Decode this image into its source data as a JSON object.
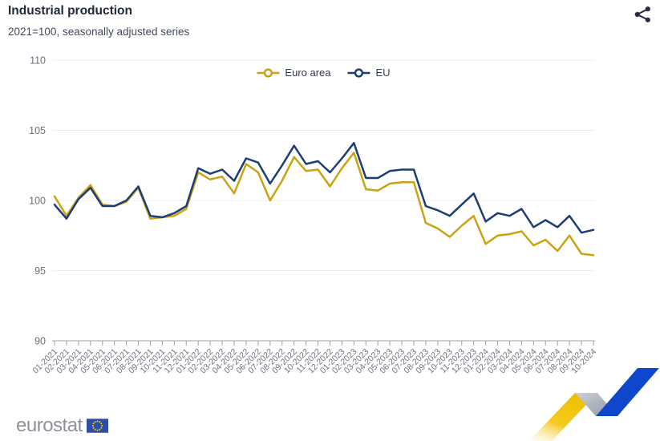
{
  "header": {
    "title": "Industrial production",
    "subtitle": "2021=100, seasonally adjusted series"
  },
  "toolbar": {
    "share_icon_color": "#252C3A"
  },
  "chart_data": {
    "type": "line",
    "title": "Industrial production",
    "subtitle": "2021=100, seasonally adjusted series",
    "xlabel": "",
    "ylabel": "",
    "ylim": [
      90,
      110
    ],
    "yticks": [
      90,
      95,
      100,
      105,
      110
    ],
    "grid": "horizontal",
    "legend_position": "top-center",
    "x": [
      "01-2021",
      "02-2021",
      "03-2021",
      "04-2021",
      "05-2021",
      "06-2021",
      "07-2021",
      "08-2021",
      "09-2021",
      "10-2021",
      "11-2021",
      "12-2021",
      "01-2022",
      "02-2022",
      "03-2022",
      "04-2022",
      "05-2022",
      "06-2022",
      "07-2022",
      "08-2022",
      "09-2022",
      "10-2022",
      "11-2022",
      "12-2022",
      "01-2023",
      "02-2023",
      "03-2023",
      "04-2023",
      "05-2023",
      "06-2023",
      "07-2023",
      "08-2023",
      "09-2023",
      "10-2023",
      "11-2023",
      "12-2023",
      "01-2024",
      "02-2024",
      "03-2024",
      "04-2024",
      "05-2024",
      "06-2024",
      "07-2024",
      "08-2024",
      "09-2024",
      "10-2024"
    ],
    "series": [
      {
        "name": "Euro area",
        "color": "#CBA312",
        "values": [
          100.3,
          98.9,
          100.2,
          101.1,
          99.7,
          99.6,
          99.9,
          100.9,
          98.7,
          98.8,
          98.9,
          99.4,
          102.0,
          101.5,
          101.7,
          100.5,
          102.6,
          102.0,
          100.0,
          101.4,
          103.1,
          102.1,
          102.2,
          101.0,
          102.3,
          103.4,
          100.8,
          100.7,
          101.2,
          101.3,
          101.3,
          98.4,
          98.0,
          97.4,
          98.2,
          98.9,
          96.9,
          97.5,
          97.6,
          97.8,
          96.8,
          97.2,
          96.4,
          97.5,
          96.2,
          96.1
        ]
      },
      {
        "name": "EU",
        "color": "#1D3E74",
        "values": [
          99.7,
          98.7,
          100.1,
          100.9,
          99.6,
          99.6,
          100.0,
          101.0,
          98.9,
          98.8,
          99.1,
          99.6,
          102.3,
          101.9,
          102.2,
          101.4,
          103.0,
          102.7,
          101.2,
          102.5,
          103.9,
          102.6,
          102.8,
          102.0,
          103.0,
          104.1,
          101.6,
          101.6,
          102.1,
          102.2,
          102.2,
          99.6,
          99.3,
          98.9,
          99.7,
          100.5,
          98.5,
          99.1,
          98.9,
          99.4,
          98.1,
          98.6,
          98.1,
          98.9,
          97.7,
          97.9
        ]
      }
    ],
    "axis_color": "#9AA3AF",
    "gridline_color": "#E8ECF1",
    "ytick_color": "#68707E",
    "xtick_color": "#6E7480"
  },
  "footer": {
    "logo_text": "eurostat",
    "flag_color": "#2E4DA5",
    "star_color": "#FFD617"
  },
  "decoration": {
    "ribbon_yellow": "#F0C002",
    "ribbon_blue": "#0E47CB",
    "ribbon_gray": "#AEB2BA"
  }
}
